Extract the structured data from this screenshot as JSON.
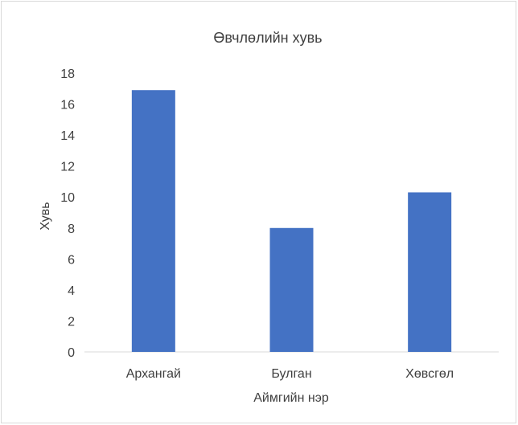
{
  "chart_data": {
    "type": "bar",
    "title": "Өвчлөлийн хувь",
    "xlabel": "Аймгийн нэр",
    "ylabel": "Хувь",
    "categories": [
      "Архангай",
      "Булган",
      "Хөвсгөл"
    ],
    "values": [
      16.9,
      8.0,
      10.3
    ],
    "ylim": [
      0,
      18
    ],
    "yticks": [
      "0",
      "2",
      "4",
      "6",
      "8",
      "10",
      "12",
      "14",
      "16",
      "18"
    ],
    "grid": false,
    "legend": "none",
    "colors": {
      "bar": "#4472c4",
      "axis": "#d9d9d9",
      "text": "#404040"
    }
  }
}
